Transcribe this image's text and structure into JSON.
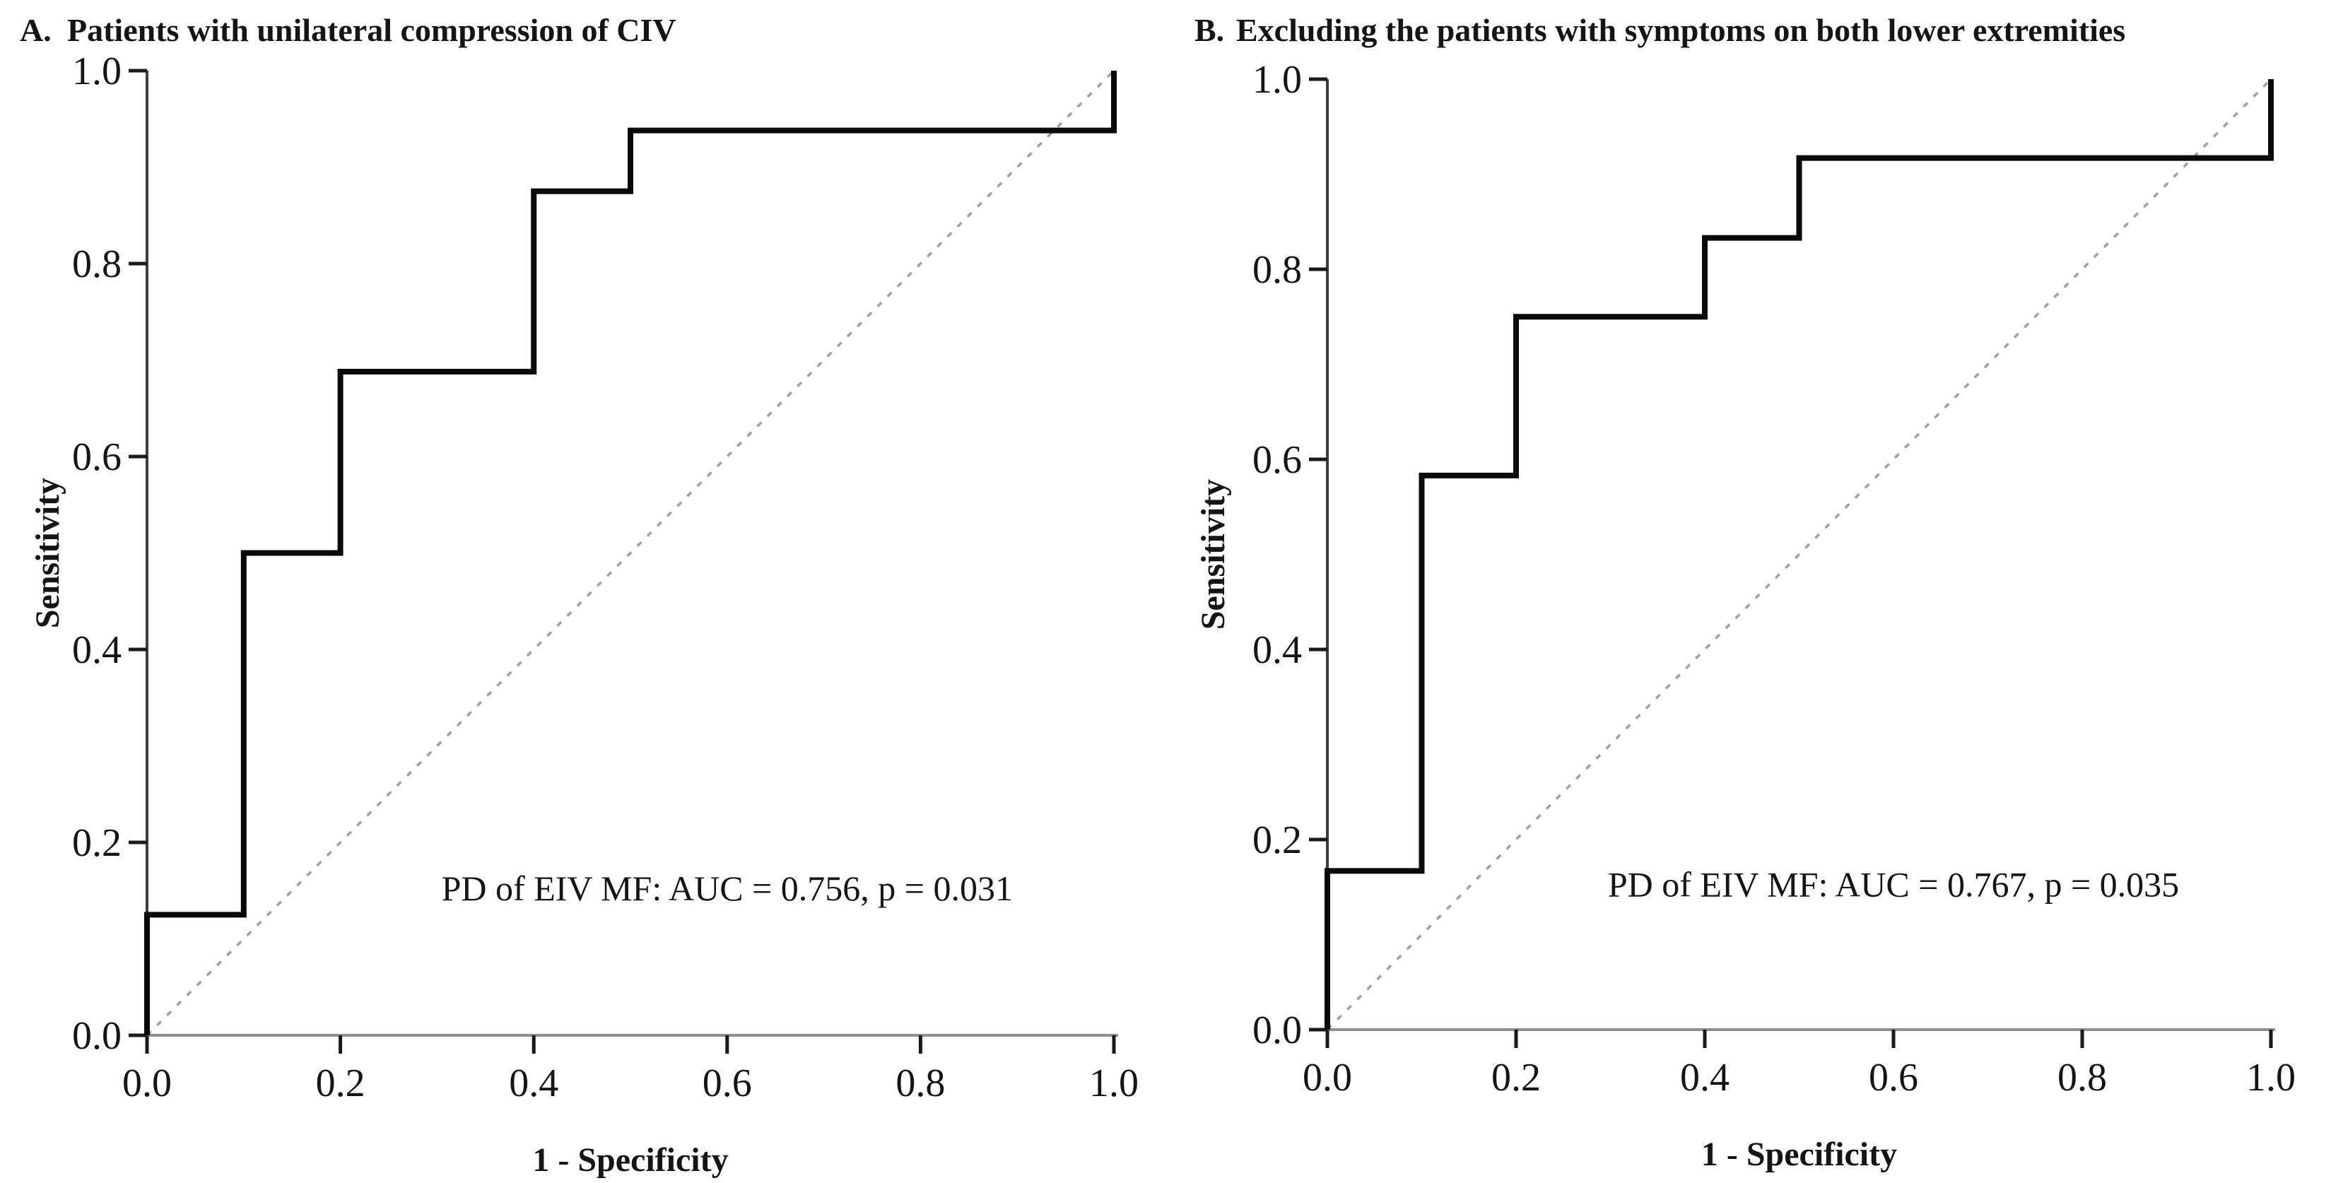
{
  "figure": {
    "background": "#ffffff",
    "description_colors": {
      "curve": "#0a0a0a",
      "diagonal_reference": "#a0a0a0",
      "y_axis": "#3d3d3d",
      "x_axis": "#8f8f8f",
      "tick": "#1a1a1a",
      "text": "#151515"
    }
  },
  "chart_data": [
    {
      "type": "line",
      "panel_label": "A.",
      "title": "Patients with unilateral compression of CIV",
      "xlabel": "1 - Specificity",
      "ylabel": "Sensitivity",
      "xlim": [
        0.0,
        1.0
      ],
      "ylim": [
        0.0,
        1.0
      ],
      "grid": false,
      "legend": "none",
      "x_ticks": [
        "0.0",
        "0.2",
        "0.4",
        "0.6",
        "0.8",
        "1.0"
      ],
      "y_ticks": [
        "0.0",
        "0.2",
        "0.4",
        "0.6",
        "0.8",
        "1.0"
      ],
      "annotation": "PD of EIV MF: AUC = 0.756, p = 0.031",
      "auc": 0.756,
      "p_value": 0.031,
      "reference_line": {
        "from": [
          0,
          0
        ],
        "to": [
          1,
          1
        ],
        "style": "dashed"
      },
      "series": [
        {
          "name": "PD of EIV MF",
          "curve_style": "step",
          "points": [
            [
              0.0,
              0.0
            ],
            [
              0.0,
              0.125
            ],
            [
              0.1,
              0.125
            ],
            [
              0.1,
              0.5
            ],
            [
              0.2,
              0.5
            ],
            [
              0.2,
              0.688
            ],
            [
              0.4,
              0.688
            ],
            [
              0.4,
              0.875
            ],
            [
              0.5,
              0.875
            ],
            [
              0.5,
              0.938
            ],
            [
              1.0,
              0.938
            ],
            [
              1.0,
              1.0
            ]
          ]
        }
      ]
    },
    {
      "type": "line",
      "panel_label": "B.",
      "title": "Excluding the patients with symptoms on both lower extremities",
      "xlabel": "1 - Specificity",
      "ylabel": "Sensitivity",
      "xlim": [
        0.0,
        1.0
      ],
      "ylim": [
        0.0,
        1.0
      ],
      "grid": false,
      "legend": "none",
      "x_ticks": [
        "0.0",
        "0.2",
        "0.4",
        "0.6",
        "0.8",
        "1.0"
      ],
      "y_ticks": [
        "0.0",
        "0.2",
        "0.4",
        "0.6",
        "0.8",
        "1.0"
      ],
      "annotation": "PD of EIV MF: AUC = 0.767, p = 0.035",
      "auc": 0.767,
      "p_value": 0.035,
      "reference_line": {
        "from": [
          0,
          0
        ],
        "to": [
          1,
          1
        ],
        "style": "dashed"
      },
      "series": [
        {
          "name": "PD of EIV MF",
          "curve_style": "step",
          "points": [
            [
              0.0,
              0.0
            ],
            [
              0.0,
              0.167
            ],
            [
              0.1,
              0.167
            ],
            [
              0.1,
              0.583
            ],
            [
              0.2,
              0.583
            ],
            [
              0.2,
              0.75
            ],
            [
              0.4,
              0.75
            ],
            [
              0.4,
              0.833
            ],
            [
              0.5,
              0.833
            ],
            [
              0.5,
              0.917
            ],
            [
              1.0,
              0.917
            ],
            [
              1.0,
              1.0
            ]
          ]
        }
      ]
    }
  ]
}
